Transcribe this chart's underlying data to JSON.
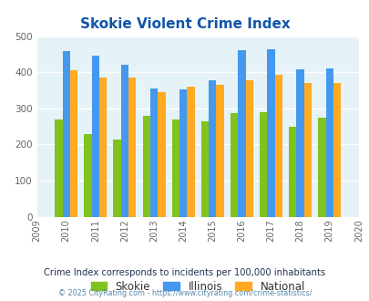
{
  "title": "Skokie Violent Crime Index",
  "years": [
    2009,
    2010,
    2011,
    2012,
    2013,
    2014,
    2015,
    2016,
    2017,
    2018,
    2019,
    2020
  ],
  "bar_years": [
    2010,
    2011,
    2012,
    2013,
    2014,
    2015,
    2016,
    2017,
    2018,
    2019
  ],
  "skokie": [
    270,
    228,
    213,
    280,
    268,
    265,
    287,
    290,
    248,
    273
  ],
  "illinois": [
    458,
    447,
    420,
    355,
    352,
    378,
    462,
    463,
    407,
    410
  ],
  "national": [
    406,
    386,
    386,
    344,
    361,
    364,
    378,
    392,
    369,
    369
  ],
  "skokie_color": "#80c31c",
  "illinois_color": "#4499ee",
  "national_color": "#ffaa22",
  "ylim": [
    0,
    500
  ],
  "yticks": [
    0,
    100,
    200,
    300,
    400,
    500
  ],
  "bg_color": "#e5f2f7",
  "subtitle": "Crime Index corresponds to incidents per 100,000 inhabitants",
  "copyright": "© 2025 CityRating.com - https://www.cityrating.com/crime-statistics/",
  "bar_width": 0.26,
  "legend_labels": [
    "Skokie",
    "Illinois",
    "National"
  ],
  "title_color": "#1155aa",
  "subtitle_color": "#223355",
  "copyright_color": "#5588aa"
}
